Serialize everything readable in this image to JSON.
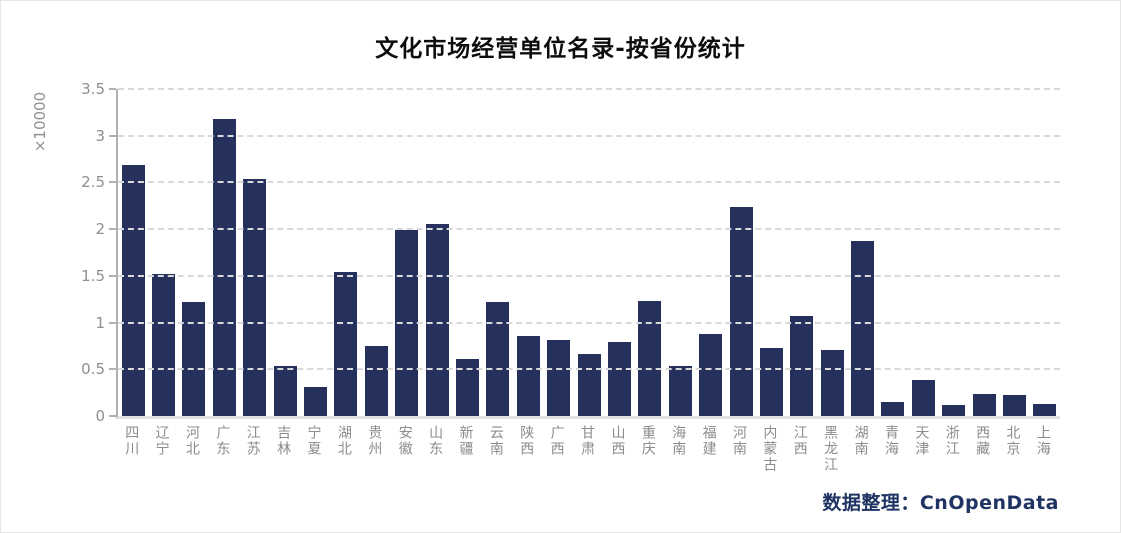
{
  "chart_data": {
    "type": "bar",
    "title": "文化市场经营单位名录-按省份统计",
    "unit_label": "×10000",
    "categories": [
      "四川",
      "辽宁",
      "河北",
      "广东",
      "江苏",
      "吉林",
      "宁夏",
      "湖北",
      "贵州",
      "安徽",
      "山东",
      "新疆",
      "云南",
      "陕西",
      "广西",
      "甘肃",
      "山西",
      "重庆",
      "海南",
      "福建",
      "河南",
      "内蒙古",
      "江西",
      "黑龙江",
      "湖南",
      "青海",
      "天津",
      "浙江",
      "西藏",
      "北京",
      "上海"
    ],
    "values": [
      2.69,
      1.52,
      1.22,
      3.18,
      2.54,
      0.54,
      0.31,
      1.54,
      0.75,
      1.99,
      2.06,
      0.61,
      1.22,
      0.86,
      0.81,
      0.66,
      0.79,
      1.23,
      0.53,
      0.88,
      2.24,
      0.73,
      1.07,
      0.71,
      1.87,
      0.15,
      0.39,
      0.12,
      0.24,
      0.22,
      0.13
    ],
    "ylim": [
      0,
      3.5
    ],
    "yticks": [
      0,
      0.5,
      1,
      1.5,
      2,
      2.5,
      3,
      3.5
    ],
    "grid": true,
    "legend": "none",
    "xlabel": "",
    "ylabel": "×10000",
    "bar_color": "#25305c",
    "credit": "数据整理：CnOpenData"
  }
}
